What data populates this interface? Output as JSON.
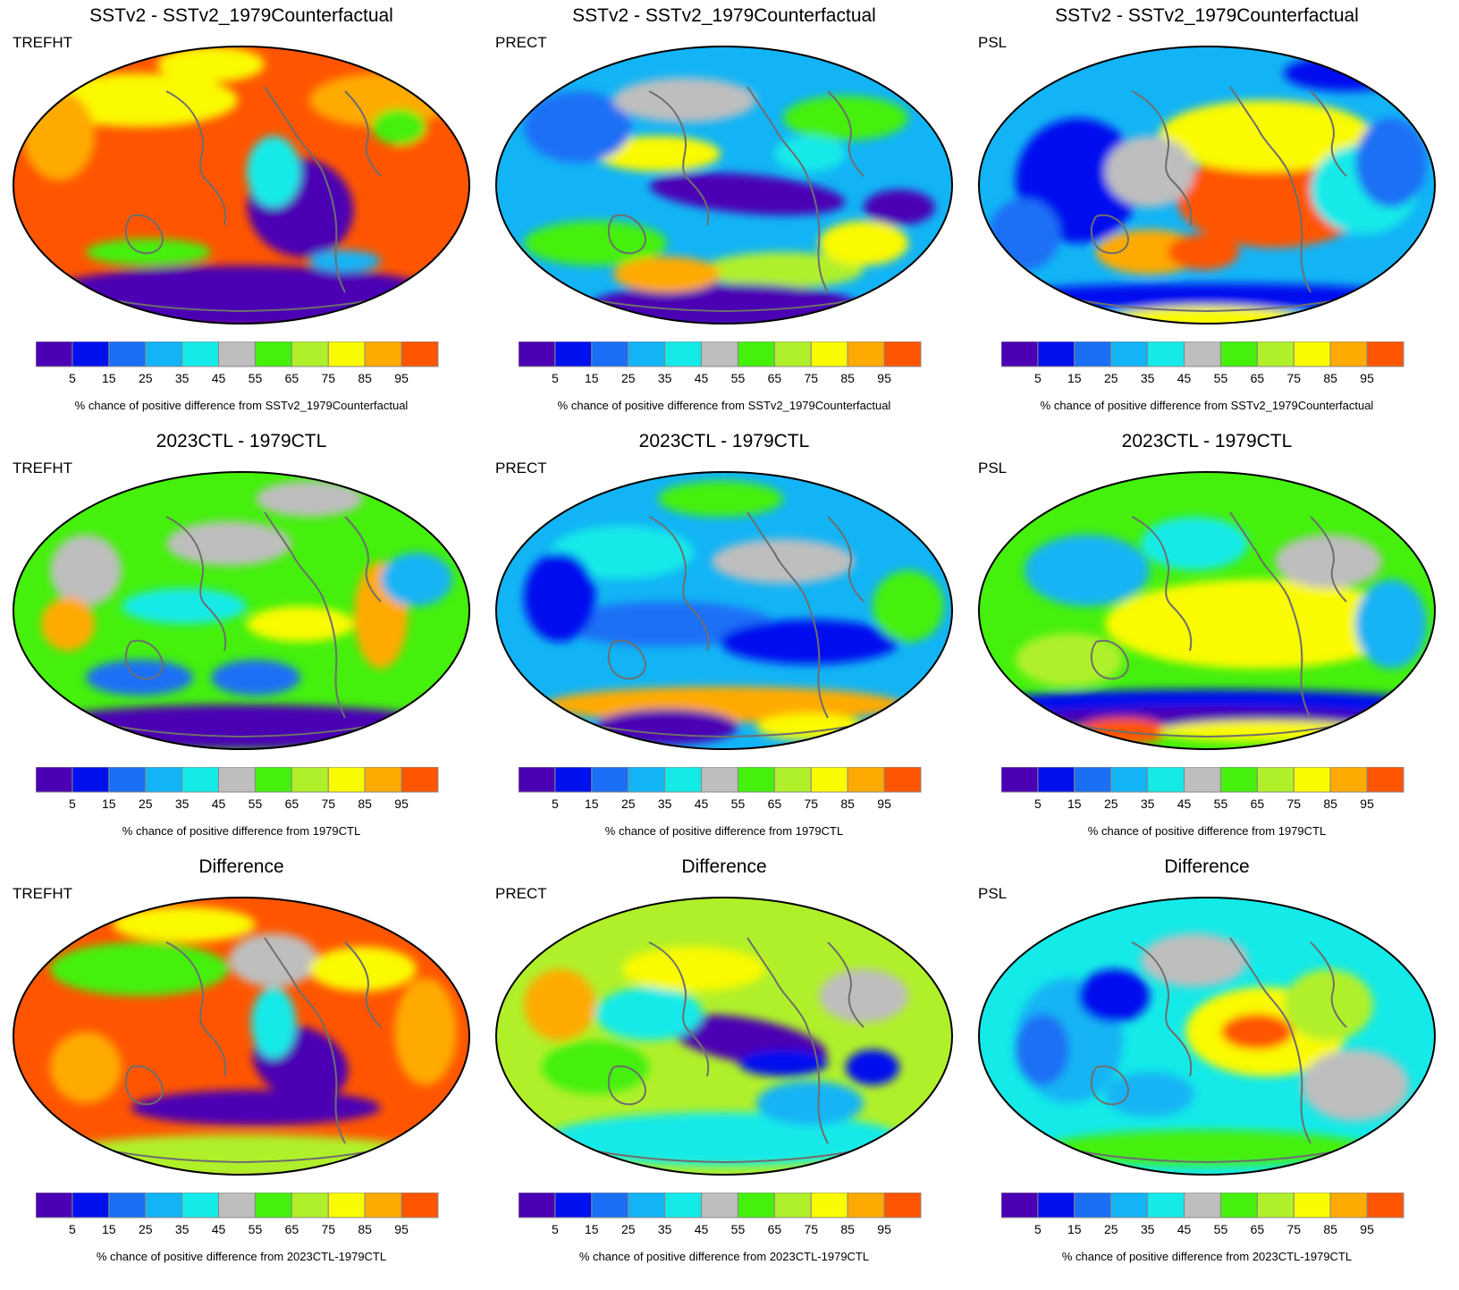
{
  "figure": {
    "colorbar": {
      "tick_labels": [
        "5",
        "15",
        "25",
        "35",
        "45",
        "55",
        "65",
        "75",
        "85",
        "95"
      ],
      "colors": [
        "#4b00b4",
        "#0011ee",
        "#1a6ff5",
        "#12b4f5",
        "#14eae8",
        "#bebebe",
        "#44f00c",
        "#b0f02a",
        "#fafa00",
        "#ffaa00",
        "#ff5500"
      ]
    },
    "coastline_color": "#6e6e6e",
    "rows": [
      {
        "title": "SSTv2 - SSTv2_1979Counterfactual",
        "colorbar_label": "% chance of positive difference from SSTv2_1979Counterfactual",
        "panels": [
          {
            "variable": "TREFHT",
            "pattern": "Ocean warming nearly everywhere; cold region in southeast Pacific and Southern Ocean"
          },
          {
            "variable": "PRECT",
            "pattern": "Mixed; strong drying in central tropical Pacific"
          },
          {
            "variable": "PSL",
            "pattern": "High pressure over Pacific, low pressure in Southern Ocean band"
          }
        ]
      },
      {
        "title": "2023CTL - 1979CTL",
        "colorbar_label": "% chance of positive difference from 1979CTL",
        "panels": [
          {
            "variable": "TREFHT",
            "pattern": "Mostly near neutral; cold Antarctica"
          },
          {
            "variable": "PRECT",
            "pattern": "Mostly blue, drier across tropics"
          },
          {
            "variable": "PSL",
            "pattern": "Yellow tropical Pacific; blue Southern Ocean band"
          }
        ]
      },
      {
        "title": "Difference",
        "colorbar_label": "% chance of positive difference from 2023CTL-1979CTL",
        "panels": [
          {
            "variable": "TREFHT",
            "pattern": "Orange oceans; purple southeast Pacific tongue"
          },
          {
            "variable": "PRECT",
            "pattern": "Mixed; dry central Pacific"
          },
          {
            "variable": "PSL",
            "pattern": "Mostly cyan; orange eastern tropical Pacific"
          }
        ]
      }
    ]
  }
}
